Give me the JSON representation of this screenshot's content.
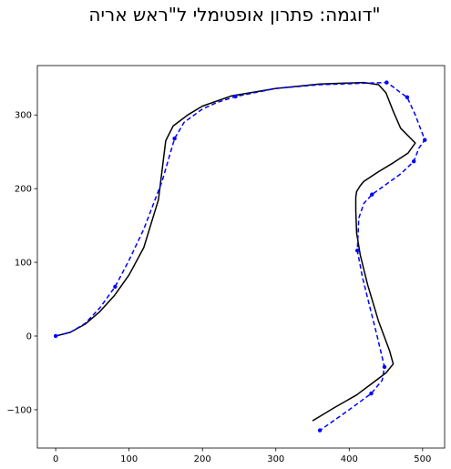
{
  "chart_data": {
    "type": "line",
    "title": "דוגמה: פתרון אופטימלי ל\"ראש אריה\"",
    "xlabel": "",
    "ylabel": "",
    "xlim": [
      -25,
      530
    ],
    "ylim": [
      -152,
      367
    ],
    "xticks": [
      0,
      100,
      200,
      300,
      400,
      500
    ],
    "yticks": [
      -100,
      0,
      100,
      200,
      300
    ],
    "grid": false,
    "series": [
      {
        "style": "solid",
        "color": "#000000",
        "markers": false,
        "points": [
          [
            0,
            0
          ],
          [
            20,
            5
          ],
          [
            40,
            16
          ],
          [
            60,
            33
          ],
          [
            80,
            55
          ],
          [
            100,
            83
          ],
          [
            120,
            120
          ],
          [
            140,
            185
          ],
          [
            150,
            265
          ],
          [
            160,
            285
          ],
          [
            180,
            300
          ],
          [
            200,
            312
          ],
          [
            240,
            326
          ],
          [
            300,
            336
          ],
          [
            360,
            342
          ],
          [
            420,
            344
          ],
          [
            440,
            341
          ],
          [
            450,
            330
          ],
          [
            460,
            305
          ],
          [
            470,
            282
          ],
          [
            490,
            262
          ],
          [
            480,
            248
          ],
          [
            460,
            235
          ],
          [
            440,
            223
          ],
          [
            420,
            210
          ],
          [
            415,
            204
          ],
          [
            410,
            196
          ],
          [
            409,
            188
          ],
          [
            409,
            170
          ],
          [
            410,
            140
          ],
          [
            415,
            110
          ],
          [
            425,
            70
          ],
          [
            440,
            20
          ],
          [
            455,
            -20
          ],
          [
            460,
            -38
          ],
          [
            450,
            -50
          ],
          [
            430,
            -65
          ],
          [
            410,
            -80
          ],
          [
            380,
            -97
          ],
          [
            350,
            -115
          ]
        ]
      },
      {
        "style": "dashed",
        "color": "#0000ff",
        "markers": true,
        "marker_indices": [
          0,
          4,
          8,
          12,
          16,
          19,
          21,
          23,
          25,
          28,
          32,
          34,
          36
        ],
        "points": [
          [
            0,
            0
          ],
          [
            20,
            5
          ],
          [
            40,
            17
          ],
          [
            60,
            38
          ],
          [
            81,
            67
          ],
          [
            100,
            103
          ],
          [
            120,
            145
          ],
          [
            145,
            210
          ],
          [
            162,
            268
          ],
          [
            175,
            290
          ],
          [
            200,
            308
          ],
          [
            220,
            317
          ],
          [
            245,
            325
          ],
          [
            300,
            336
          ],
          [
            360,
            341
          ],
          [
            420,
            343
          ],
          [
            451,
            344
          ],
          [
            460,
            338
          ],
          [
            470,
            330
          ],
          [
            479,
            324
          ],
          [
            490,
            300
          ],
          [
            503,
            266
          ],
          [
            495,
            255
          ],
          [
            488,
            237
          ],
          [
            470,
            220
          ],
          [
            431,
            192
          ],
          [
            420,
            180
          ],
          [
            413,
            160
          ],
          [
            411,
            116
          ],
          [
            418,
            80
          ],
          [
            428,
            40
          ],
          [
            438,
            0
          ],
          [
            448,
            -42
          ],
          [
            445,
            -60
          ],
          [
            430,
            -78
          ],
          [
            400,
            -100
          ],
          [
            360,
            -128
          ]
        ]
      }
    ]
  }
}
